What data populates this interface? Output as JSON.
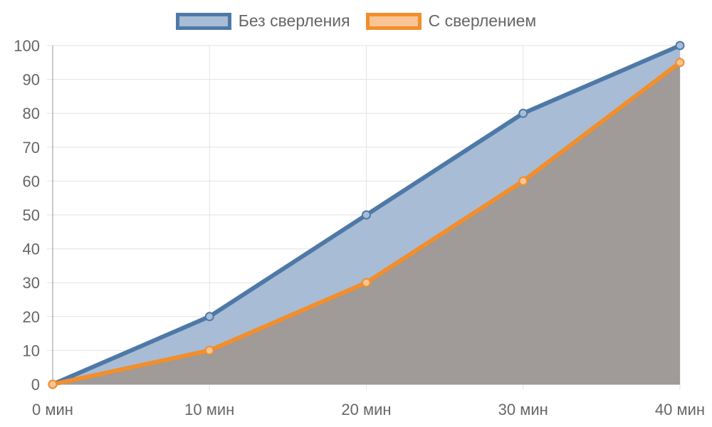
{
  "chart_data": {
    "type": "area",
    "categories": [
      "0 мин",
      "10 мин",
      "20 мин",
      "30 мин",
      "40 мин"
    ],
    "series": [
      {
        "name": "Без сверления",
        "values": [
          0,
          20,
          50,
          80,
          100
        ],
        "stroke": "#4e79a7",
        "fill": "#a8bcd6"
      },
      {
        "name": "С сверлением",
        "values": [
          0,
          10,
          30,
          60,
          95
        ],
        "stroke": "#f28e2b",
        "fill": "#f9c595"
      }
    ],
    "overlap_fill": "#a09a98",
    "ylim": [
      0,
      100
    ],
    "yticks": [
      0,
      10,
      20,
      30,
      40,
      50,
      60,
      70,
      80,
      90,
      100
    ],
    "legend_position": "top-center",
    "grid": true,
    "title": "",
    "xlabel": "",
    "ylabel": ""
  }
}
